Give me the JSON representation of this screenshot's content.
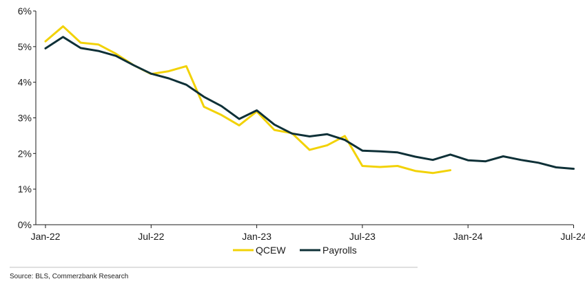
{
  "chart_data": {
    "type": "line",
    "title": "",
    "xlabel": "",
    "ylabel": "",
    "ylim": [
      0,
      6
    ],
    "y_unit": "%",
    "y_ticks": [
      "0%",
      "1%",
      "2%",
      "3%",
      "4%",
      "5%",
      "6%"
    ],
    "x_ticks": [
      "Jan-22",
      "Jul-22",
      "Jan-23",
      "Jul-23",
      "Jan-24",
      "Jul-24"
    ],
    "grid": false,
    "legend_position": "bottom",
    "series": [
      {
        "name": "QCEW",
        "color": "#F2D206",
        "x": [
          "2022-01",
          "2022-02",
          "2022-03",
          "2022-04",
          "2022-05",
          "2022-06",
          "2022-07",
          "2022-08",
          "2022-09",
          "2022-10",
          "2022-11",
          "2022-12",
          "2023-01",
          "2023-02",
          "2023-03",
          "2023-04",
          "2023-05",
          "2023-06",
          "2023-07",
          "2023-08",
          "2023-09",
          "2023-10",
          "2023-11",
          "2023-12"
        ],
        "values": [
          5.15,
          5.57,
          5.11,
          5.06,
          4.8,
          4.48,
          4.23,
          4.31,
          4.45,
          3.31,
          3.08,
          2.79,
          3.18,
          2.66,
          2.57,
          2.1,
          2.23,
          2.49,
          1.65,
          1.62,
          1.65,
          1.51,
          1.45,
          1.53
        ]
      },
      {
        "name": "Payrolls",
        "color": "#0E3037",
        "x": [
          "2022-01",
          "2022-02",
          "2022-03",
          "2022-04",
          "2022-05",
          "2022-06",
          "2022-07",
          "2022-08",
          "2022-09",
          "2022-10",
          "2022-11",
          "2022-12",
          "2023-01",
          "2023-02",
          "2023-03",
          "2023-04",
          "2023-05",
          "2023-06",
          "2023-07",
          "2023-08",
          "2023-09",
          "2023-10",
          "2023-11",
          "2023-12",
          "2024-01",
          "2024-02",
          "2024-03",
          "2024-04",
          "2024-05",
          "2024-06",
          "2024-07"
        ],
        "values": [
          4.95,
          5.27,
          4.96,
          4.88,
          4.74,
          4.48,
          4.24,
          4.11,
          3.93,
          3.59,
          3.33,
          2.97,
          3.21,
          2.81,
          2.56,
          2.48,
          2.54,
          2.38,
          2.08,
          2.06,
          2.03,
          1.91,
          1.82,
          1.97,
          1.81,
          1.78,
          1.92,
          1.82,
          1.74,
          1.61,
          1.57
        ]
      }
    ],
    "source": "Source: BLS, Commerzbank Research"
  }
}
